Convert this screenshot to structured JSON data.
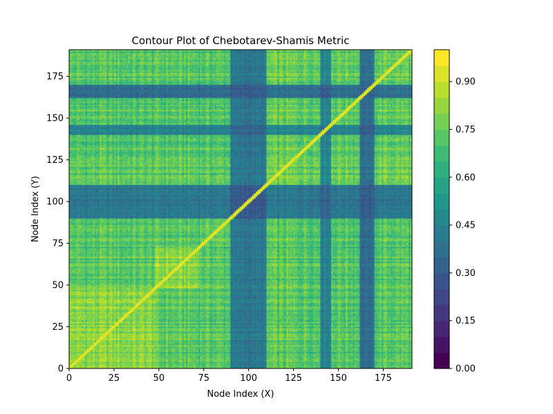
{
  "chart_data": {
    "type": "heatmap",
    "title": "Contour Plot of Chebotarev-Shamis Metric",
    "xlabel": "Node Index (X)",
    "ylabel": "Node Index (Y)",
    "xlim": [
      0,
      191
    ],
    "ylim": [
      0,
      191
    ],
    "xticks": [
      0,
      25,
      50,
      75,
      100,
      125,
      150,
      175
    ],
    "yticks": [
      0,
      25,
      50,
      75,
      100,
      125,
      150,
      175
    ],
    "colorbar": {
      "range": [
        0.0,
        1.0
      ],
      "levels": 20,
      "ticks": [
        0.0,
        0.15,
        0.3,
        0.45,
        0.6,
        0.75,
        0.9
      ],
      "tick_labels": [
        "0.00",
        "0.15",
        "0.30",
        "0.45",
        "0.60",
        "0.75",
        "0.90"
      ],
      "colormap": "viridis",
      "colors": [
        "#440154",
        "#482878",
        "#3e4989",
        "#31688e",
        "#26828e",
        "#1f9e89",
        "#35b779",
        "#6ece58",
        "#b5de2b",
        "#fde725"
      ]
    },
    "diagonal_value": 1.0,
    "background_value": 0.72,
    "communities": [
      {
        "range": [
          0,
          48
        ],
        "inner_value": 0.8
      },
      {
        "range": [
          48,
          73
        ],
        "inner_value": 0.8
      },
      {
        "range": [
          73,
          90
        ],
        "inner_value": 0.74
      },
      {
        "range": [
          90,
          110
        ],
        "inner_value": 0.6
      },
      {
        "range": [
          110,
          191
        ],
        "inner_value": 0.75
      }
    ],
    "low_bands": [
      {
        "range": [
          90,
          110
        ],
        "value": 0.4
      },
      {
        "range": [
          140,
          146
        ],
        "value": 0.45
      },
      {
        "range": [
          162,
          170
        ],
        "value": 0.35
      },
      {
        "range": [
          104,
          110
        ],
        "value": 0.45
      },
      {
        "range": [
          163,
          170
        ],
        "value": 0.4
      },
      {
        "range": [
          141,
          144
        ],
        "value": 0.45
      }
    ]
  }
}
